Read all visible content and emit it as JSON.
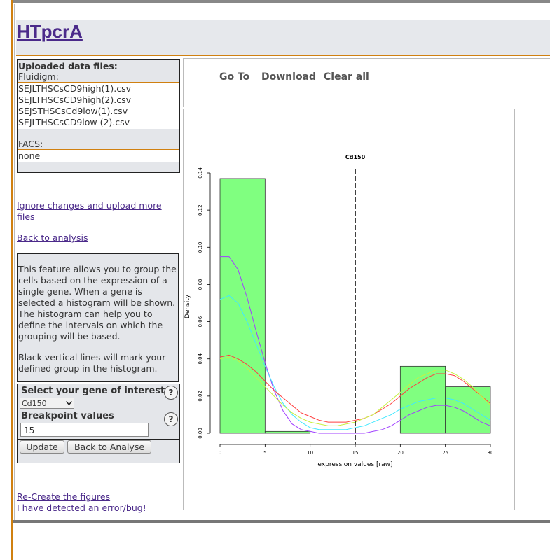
{
  "app": {
    "title": "HTpcrA"
  },
  "uploaded": {
    "heading": "Uploaded data files:",
    "fluidigm_label": "Fluidigm:",
    "fluidigm_files": [
      "SEJLTHSCsCD9high(1).csv",
      "SEJLTHSCsCD9high(2).csv",
      "SEJSTHSCsCd9low(1).csv",
      "SEJLTHSCsCD9low (2).csv"
    ],
    "facs_label": "FACS:",
    "facs_value": "none"
  },
  "links": {
    "ignore_changes": "Ignore changes and upload more files",
    "back_to_analysis": "Back to analysis",
    "recreate_figures": "Re-Create the figures",
    "report_bug": "I have detected an error/bug!"
  },
  "info": {
    "paragraph1": "This feature allows you to group the cells based on the expression of a single gene. When a gene is selected a histogram will be shown. The histogram can help you to define the intervals on which the grouping will be based.",
    "paragraph2": "Black vertical lines will mark your defined group in the histogram."
  },
  "form": {
    "gene_label": "Select your gene of interest",
    "gene_value": "Cd150",
    "help_symbol": "?",
    "breakpoint_label": "Breakpoint values",
    "breakpoint_value": "15",
    "update_button": "Update",
    "back_button": "Back to Analyse"
  },
  "nav": {
    "goto": "Go To",
    "download": "Download",
    "clear_all": "Clear all"
  },
  "chart_data": {
    "type": "bar",
    "title": "Cd150",
    "xlabel": "expression values [raw]",
    "ylabel": "Density",
    "xlim": [
      0,
      30
    ],
    "ylim": [
      0,
      0.14
    ],
    "xticks": [
      0,
      5,
      10,
      15,
      20,
      25,
      30
    ],
    "yticks": [
      0.0,
      0.02,
      0.04,
      0.06,
      0.08,
      0.1,
      0.12,
      0.14
    ],
    "bins": [
      {
        "x0": 0,
        "x1": 5,
        "density": 0.137
      },
      {
        "x0": 5,
        "x1": 10,
        "density": 0.001
      },
      {
        "x0": 10,
        "x1": 15,
        "density": 0.0
      },
      {
        "x0": 15,
        "x1": 20,
        "density": 0.0
      },
      {
        "x0": 20,
        "x1": 25,
        "density": 0.036
      },
      {
        "x0": 25,
        "x1": 30,
        "density": 0.025
      }
    ],
    "breakpoint": 15,
    "bar_color": "#80ff80",
    "density_curves": [
      {
        "color": "#a040ff",
        "x": [
          0,
          1,
          2,
          3,
          4,
          5,
          6,
          7,
          8,
          9,
          10,
          11,
          12,
          13,
          14,
          15,
          16,
          17,
          18,
          19,
          20,
          21,
          22,
          23,
          24,
          25,
          26,
          27,
          28,
          29,
          30
        ],
        "y": [
          0.095,
          0.095,
          0.088,
          0.073,
          0.055,
          0.038,
          0.023,
          0.012,
          0.005,
          0.002,
          0.001,
          0.0,
          0.0,
          0.0,
          0.0,
          0.0,
          0.0,
          0.001,
          0.002,
          0.004,
          0.007,
          0.01,
          0.012,
          0.014,
          0.015,
          0.015,
          0.014,
          0.012,
          0.009,
          0.006,
          0.004
        ]
      },
      {
        "color": "#40e8ff",
        "x": [
          0,
          1,
          2,
          3,
          4,
          5,
          6,
          7,
          8,
          9,
          10,
          11,
          12,
          13,
          14,
          15,
          16,
          17,
          18,
          19,
          20,
          21,
          22,
          23,
          24,
          25,
          26,
          27,
          28,
          29,
          30
        ],
        "y": [
          0.072,
          0.074,
          0.07,
          0.06,
          0.048,
          0.036,
          0.025,
          0.016,
          0.01,
          0.006,
          0.003,
          0.002,
          0.002,
          0.002,
          0.002,
          0.003,
          0.004,
          0.006,
          0.008,
          0.01,
          0.013,
          0.015,
          0.017,
          0.018,
          0.019,
          0.019,
          0.018,
          0.016,
          0.013,
          0.01,
          0.007
        ]
      },
      {
        "color": "#ff4040",
        "x": [
          0,
          1,
          2,
          3,
          4,
          5,
          6,
          7,
          8,
          9,
          10,
          11,
          12,
          13,
          14,
          15,
          16,
          17,
          18,
          19,
          20,
          21,
          22,
          23,
          24,
          25,
          26,
          27,
          28,
          29,
          30
        ],
        "y": [
          0.041,
          0.042,
          0.04,
          0.037,
          0.033,
          0.028,
          0.023,
          0.019,
          0.015,
          0.011,
          0.009,
          0.007,
          0.006,
          0.006,
          0.006,
          0.007,
          0.008,
          0.01,
          0.013,
          0.016,
          0.02,
          0.024,
          0.027,
          0.03,
          0.032,
          0.032,
          0.031,
          0.028,
          0.024,
          0.02,
          0.016
        ]
      },
      {
        "color": "#c8f040",
        "x": [
          0,
          1,
          2,
          3,
          4,
          5,
          6,
          7,
          8,
          9,
          10,
          11,
          12,
          13,
          14,
          15,
          16,
          17,
          18,
          19,
          20,
          21,
          22,
          23,
          24,
          25,
          26,
          27,
          28,
          29,
          30
        ],
        "y": [
          0.04,
          0.041,
          0.039,
          0.035,
          0.03,
          0.025,
          0.02,
          0.015,
          0.011,
          0.008,
          0.006,
          0.005,
          0.004,
          0.004,
          0.005,
          0.006,
          0.008,
          0.01,
          0.014,
          0.018,
          0.022,
          0.026,
          0.03,
          0.032,
          0.034,
          0.034,
          0.032,
          0.029,
          0.025,
          0.02,
          0.015
        ]
      }
    ]
  }
}
